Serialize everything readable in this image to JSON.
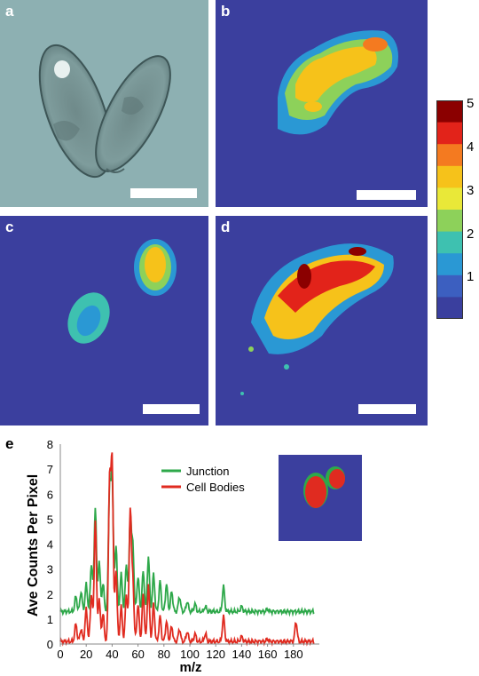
{
  "panels": {
    "a": {
      "label": "a"
    },
    "b": {
      "label": "b"
    },
    "c": {
      "label": "c"
    },
    "d": {
      "label": "d"
    },
    "e": {
      "label": "e"
    }
  },
  "colorbar": {
    "ticks": [
      "5",
      "4",
      "3",
      "2",
      "1"
    ],
    "colors": [
      "#8b0000",
      "#e2231a",
      "#f47a20",
      "#f6c21a",
      "#e9e838",
      "#8dd15a",
      "#3ec1b0",
      "#2a98d4",
      "#3c5fc0",
      "#3a3f9e"
    ]
  },
  "colors": {
    "map_background": "#3b3f9e",
    "junction": "#2ea84a",
    "cell_bodies": "#e02b20"
  },
  "chart_data": {
    "type": "line",
    "xlabel": "m/z",
    "ylabel": "Ave Counts Per Pixel",
    "xlim": [
      0,
      200
    ],
    "ylim": [
      0,
      8
    ],
    "xticks": [
      "0",
      "20",
      "40",
      "60",
      "80",
      "100",
      "120",
      "140",
      "160",
      "180"
    ],
    "yticks": [
      "0",
      "1",
      "2",
      "3",
      "4",
      "5",
      "6",
      "7",
      "8"
    ],
    "legend": [
      "Junction",
      "Cell Bodies"
    ],
    "series": [
      {
        "name": "Junction",
        "baseline": 1.3,
        "peaks": [
          [
            12,
            1.9
          ],
          [
            16,
            2.1
          ],
          [
            20,
            2.4
          ],
          [
            24,
            3.2
          ],
          [
            27,
            5.5
          ],
          [
            30,
            3.3
          ],
          [
            33,
            2.4
          ],
          [
            38,
            6.2
          ],
          [
            40,
            6.8
          ],
          [
            43,
            4.0
          ],
          [
            47,
            2.8
          ],
          [
            51,
            3.2
          ],
          [
            54,
            5.0
          ],
          [
            56,
            3.9
          ],
          [
            60,
            2.7
          ],
          [
            64,
            2.9
          ],
          [
            68,
            3.5
          ],
          [
            72,
            2.8
          ],
          [
            77,
            2.5
          ],
          [
            82,
            2.4
          ],
          [
            86,
            2.1
          ],
          [
            92,
            1.9
          ],
          [
            98,
            1.7
          ],
          [
            104,
            1.6
          ],
          [
            112,
            1.5
          ],
          [
            126,
            2.3
          ],
          [
            140,
            1.5
          ],
          [
            160,
            1.4
          ],
          [
            182,
            1.3
          ]
        ]
      },
      {
        "name": "Cell Bodies",
        "baseline": 0.1,
        "peaks": [
          [
            12,
            0.8
          ],
          [
            16,
            0.6
          ],
          [
            20,
            1.4
          ],
          [
            24,
            2.0
          ],
          [
            27,
            5.0
          ],
          [
            30,
            1.8
          ],
          [
            33,
            1.2
          ],
          [
            38,
            6.5
          ],
          [
            40,
            7.3
          ],
          [
            43,
            3.0
          ],
          [
            47,
            1.5
          ],
          [
            51,
            2.0
          ],
          [
            54,
            5.4
          ],
          [
            56,
            2.5
          ],
          [
            60,
            1.6
          ],
          [
            64,
            2.0
          ],
          [
            68,
            2.4
          ],
          [
            72,
            1.6
          ],
          [
            77,
            1.1
          ],
          [
            82,
            0.9
          ],
          [
            86,
            0.7
          ],
          [
            92,
            0.6
          ],
          [
            98,
            0.5
          ],
          [
            104,
            0.4
          ],
          [
            112,
            0.4
          ],
          [
            126,
            1.1
          ],
          [
            140,
            0.3
          ],
          [
            160,
            0.2
          ],
          [
            182,
            0.9
          ]
        ]
      }
    ]
  }
}
